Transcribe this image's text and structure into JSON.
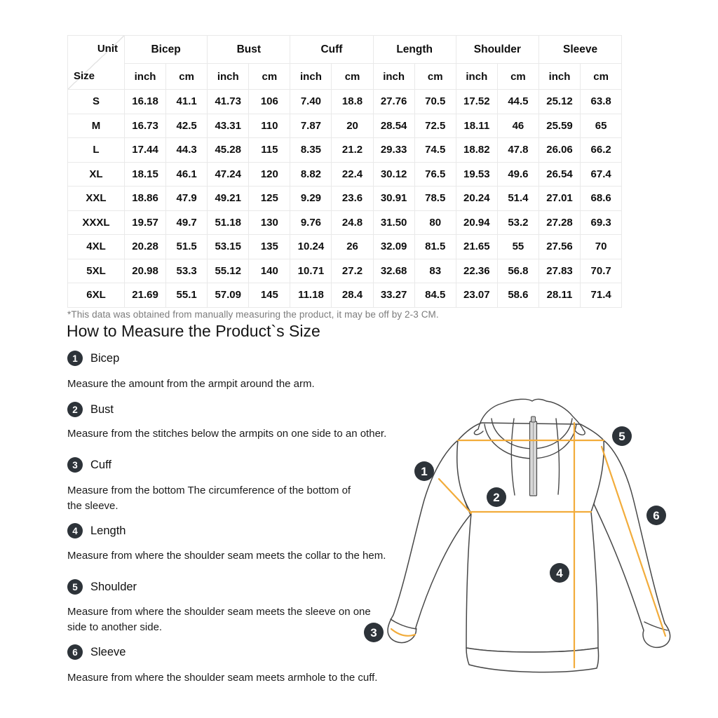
{
  "size_chart": {
    "corner_top": "Unit",
    "corner_bottom": "Size",
    "groups": [
      "Bicep",
      "Bust",
      "Cuff",
      "Length",
      "Shoulder",
      "Sleeve"
    ],
    "unit_pair": [
      "inch",
      "cm"
    ],
    "rows": [
      {
        "size": "S",
        "values": [
          "16.18",
          "41.1",
          "41.73",
          "106",
          "7.40",
          "18.8",
          "27.76",
          "70.5",
          "17.52",
          "44.5",
          "25.12",
          "63.8"
        ]
      },
      {
        "size": "M",
        "values": [
          "16.73",
          "42.5",
          "43.31",
          "110",
          "7.87",
          "20",
          "28.54",
          "72.5",
          "18.11",
          "46",
          "25.59",
          "65"
        ]
      },
      {
        "size": "L",
        "values": [
          "17.44",
          "44.3",
          "45.28",
          "115",
          "8.35",
          "21.2",
          "29.33",
          "74.5",
          "18.82",
          "47.8",
          "26.06",
          "66.2"
        ]
      },
      {
        "size": "XL",
        "values": [
          "18.15",
          "46.1",
          "47.24",
          "120",
          "8.82",
          "22.4",
          "30.12",
          "76.5",
          "19.53",
          "49.6",
          "26.54",
          "67.4"
        ]
      },
      {
        "size": "XXL",
        "values": [
          "18.86",
          "47.9",
          "49.21",
          "125",
          "9.29",
          "23.6",
          "30.91",
          "78.5",
          "20.24",
          "51.4",
          "27.01",
          "68.6"
        ]
      },
      {
        "size": "XXXL",
        "values": [
          "19.57",
          "49.7",
          "51.18",
          "130",
          "9.76",
          "24.8",
          "31.50",
          "80",
          "20.94",
          "53.2",
          "27.28",
          "69.3"
        ]
      },
      {
        "size": "4XL",
        "values": [
          "20.28",
          "51.5",
          "53.15",
          "135",
          "10.24",
          "26",
          "32.09",
          "81.5",
          "21.65",
          "55",
          "27.56",
          "70"
        ]
      },
      {
        "size": "5XL",
        "values": [
          "20.98",
          "53.3",
          "55.12",
          "140",
          "10.71",
          "27.2",
          "32.68",
          "83",
          "22.36",
          "56.8",
          "27.83",
          "70.7"
        ]
      },
      {
        "size": "6XL",
        "values": [
          "21.69",
          "55.1",
          "57.09",
          "145",
          "11.18",
          "28.4",
          "33.27",
          "84.5",
          "23.07",
          "58.6",
          "28.11",
          "71.4"
        ]
      }
    ],
    "note": "*This data was obtained from manually measuring the product, it may be off by 2-3 CM."
  },
  "how_to": {
    "title": "How to Measure the Product`s Size",
    "steps": [
      {
        "num": "1",
        "label": "Bicep",
        "desc": "Measure the amount from the armpit around the arm."
      },
      {
        "num": "2",
        "label": "Bust",
        "desc": "Measure from the stitches below the armpits on one side to an other."
      },
      {
        "num": "3",
        "label": "Cuff",
        "desc": "Measure from the bottom The circumference of the bottom of\nthe sleeve."
      },
      {
        "num": "4",
        "label": "Length",
        "desc": "Measure from where the shoulder seam meets the collar to the hem."
      },
      {
        "num": "5",
        "label": "Shoulder",
        "desc": "Measure from where the shoulder seam meets the sleeve on one\nside to another side."
      },
      {
        "num": "6",
        "label": "Sleeve",
        "desc": "Measure from where the shoulder seam meets armhole to the cuff."
      }
    ]
  },
  "diagram": {
    "accent_color": "#F2AC3B",
    "badge_color": "#2D3339",
    "garment": "quarter-zip-hoodie"
  }
}
